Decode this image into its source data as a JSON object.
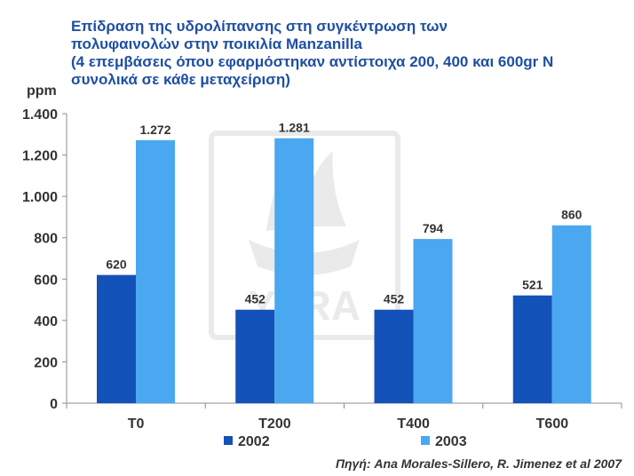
{
  "title": {
    "line1": "Επίδραση της υδρολίπανσης στη συγκέντρωση των",
    "line2": "πολυφαινολών στην ποικιλία Manzanilla",
    "line3": "(4 επεμβάσεις όπου εφαρμόστηκαν αντίστοιχα 200, 400 και 600gr N",
    "line4": "συνολικά σε κάθε μεταχείριση)"
  },
  "source": "Πηγή: Ana Morales-Sillero, R. Jimenez et al 2007",
  "watermark": {
    "text": "YARA",
    "color": "#d9d9d9"
  },
  "chart_data": {
    "type": "bar",
    "title": "Επίδραση της υδρολίπανσης στη συγκέντρωση των πολυφαινολών στην ποικιλία Manzanilla",
    "ylabel": "ppm",
    "xlabel": "",
    "ylim": [
      0,
      1400
    ],
    "yticks": [
      0,
      200,
      400,
      600,
      800,
      1000,
      1200,
      1400
    ],
    "ytick_labels": [
      "0",
      "200",
      "400",
      "600",
      "800",
      "1.000",
      "1.200",
      "1.400"
    ],
    "categories": [
      "T0",
      "T200",
      "T400",
      "T600"
    ],
    "series": [
      {
        "name": "2002",
        "values": [
          620,
          452,
          452,
          521
        ],
        "labels": [
          "620",
          "452",
          "452",
          "521"
        ],
        "color": "#1352b8"
      },
      {
        "name": "2003",
        "values": [
          1272,
          1281,
          794,
          860
        ],
        "labels": [
          "1.272",
          "1.281",
          "794",
          "860"
        ],
        "color": "#4aa8f0"
      }
    ],
    "grid": false,
    "legend": "bottom"
  }
}
